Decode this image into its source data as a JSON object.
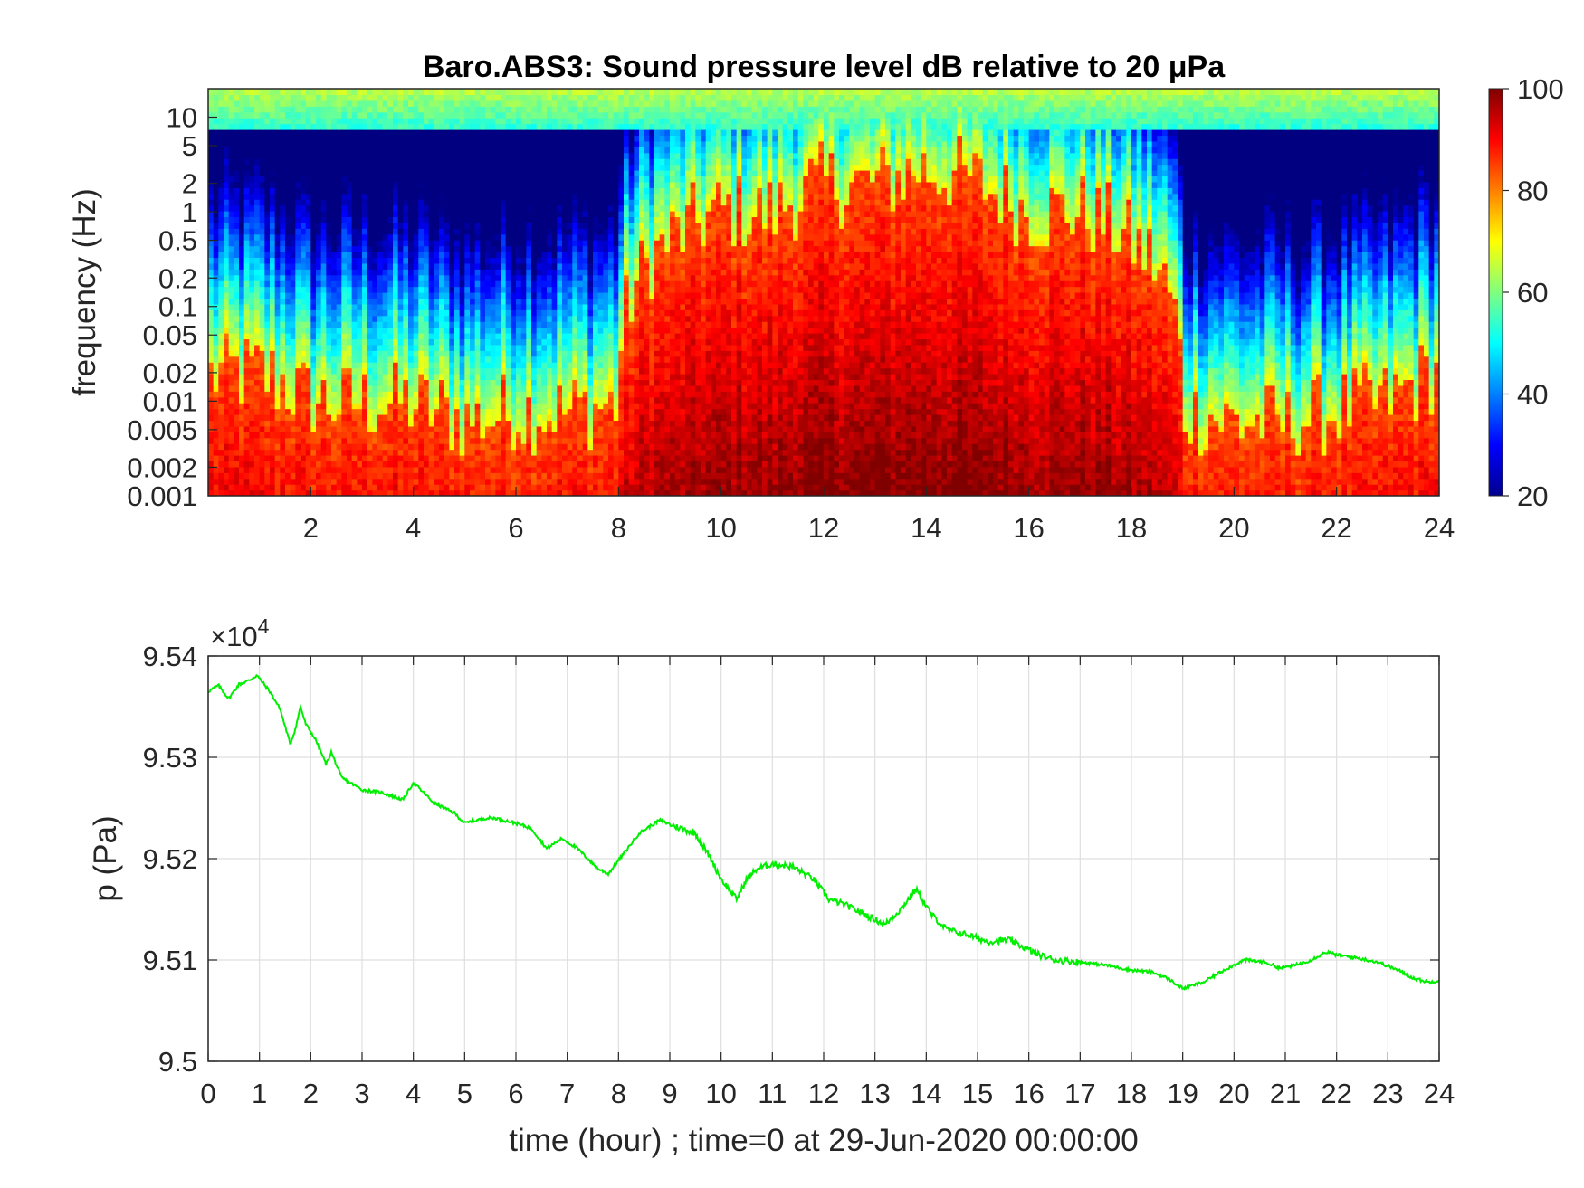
{
  "chart_data": [
    {
      "type": "heatmap",
      "title": "Baro.ABS3: Sound pressure level dB relative to 20 μPa",
      "xlabel": "",
      "ylabel": "frequency (Hz)",
      "xlim": [
        0,
        24
      ],
      "x_ticks": [
        "2",
        "4",
        "6",
        "8",
        "10",
        "12",
        "14",
        "16",
        "18",
        "20",
        "22",
        "24"
      ],
      "y_scale": "log",
      "ylim": [
        0.001,
        20
      ],
      "y_ticks": [
        "10",
        "5",
        "2",
        "1",
        "0.5",
        "0.2",
        "0.1",
        "0.05",
        "0.02",
        "0.01",
        "0.005",
        "0.002",
        "0.001"
      ],
      "colormap": "jet",
      "colorbar": {
        "range": [
          20,
          100
        ],
        "ticks": [
          "100",
          "80",
          "60",
          "40",
          "20"
        ]
      },
      "level_profile": {
        "hours": [
          0,
          1,
          2,
          3,
          4,
          5,
          6,
          7,
          8,
          9,
          10,
          11,
          12,
          13,
          14,
          15,
          16,
          17,
          18,
          19,
          20,
          21,
          22,
          23,
          24
        ],
        "transition_frequency_hz": [
          0.02,
          0.02,
          0.01,
          0.01,
          0.01,
          0.006,
          0.008,
          0.008,
          0.01,
          0.5,
          1,
          1,
          2,
          2,
          3,
          2,
          1,
          1,
          0.5,
          0.008,
          0.006,
          0.006,
          0.008,
          0.01,
          0.02
        ]
      }
    },
    {
      "type": "line",
      "title": "",
      "xlabel": "time (hour) ; time=0 at 29-Jun-2020 00:00:00",
      "ylabel": "p (Pa)",
      "y_multiplier": "×10",
      "y_multiplier_exp": "4",
      "xlim": [
        0,
        24
      ],
      "ylim": [
        95000,
        95400
      ],
      "x_ticks": [
        "0",
        "1",
        "2",
        "3",
        "4",
        "5",
        "6",
        "7",
        "8",
        "9",
        "10",
        "11",
        "12",
        "13",
        "14",
        "15",
        "16",
        "17",
        "18",
        "19",
        "20",
        "21",
        "22",
        "23",
        "24"
      ],
      "y_ticks": [
        "9.5",
        "9.51",
        "9.52",
        "9.53",
        "9.54"
      ],
      "grid": true,
      "color": "#00ee00",
      "series": [
        {
          "x": [
            0,
            0.2,
            0.4,
            0.6,
            0.8,
            0.95,
            1.2,
            1.4,
            1.6,
            1.7,
            1.8,
            1.9,
            2.1,
            2.3,
            2.4,
            2.6,
            3.0,
            3.4,
            3.8,
            4.0,
            4.4,
            4.8,
            5.0,
            5.4,
            5.6,
            6.0,
            6.3,
            6.6,
            6.9,
            7.2,
            7.4,
            7.6,
            7.8,
            8.1,
            8.4,
            8.8,
            9.1,
            9.5,
            9.8,
            10.0,
            10.3,
            10.5,
            10.7,
            11.0,
            11.4,
            11.8,
            12.1,
            12.4,
            12.8,
            13.2,
            13.5,
            13.8,
            14.1,
            14.4,
            14.8,
            15.2,
            15.6,
            16.0,
            16.2,
            16.5,
            17.0,
            17.5,
            18.0,
            18.4,
            18.7,
            19.0,
            19.4,
            19.8,
            20.2,
            20.6,
            20.9,
            21.2,
            21.5,
            21.8,
            22.0,
            22.4,
            22.8,
            23.2,
            23.5,
            23.8,
            24.0
          ],
          "y": [
            95365,
            95371,
            95358,
            95372,
            95376,
            95381,
            95365,
            95348,
            95313,
            95328,
            95350,
            95333,
            95317,
            95293,
            95305,
            95280,
            95268,
            95265,
            95258,
            95275,
            95255,
            95245,
            95235,
            95240,
            95240,
            95235,
            95230,
            95210,
            95220,
            95210,
            95200,
            95190,
            95185,
            95205,
            95225,
            95238,
            95232,
            95225,
            95200,
            95180,
            95160,
            95180,
            95190,
            95195,
            95192,
            95180,
            95160,
            95155,
            95145,
            95135,
            95150,
            95170,
            95145,
            95130,
            95125,
            95118,
            95120,
            95110,
            95105,
            95100,
            95098,
            95095,
            95090,
            95088,
            95082,
            95072,
            95078,
            95090,
            95100,
            95098,
            95092,
            95095,
            95100,
            95108,
            95105,
            95102,
            95098,
            95090,
            95082,
            95078,
            95080
          ]
        }
      ]
    }
  ]
}
